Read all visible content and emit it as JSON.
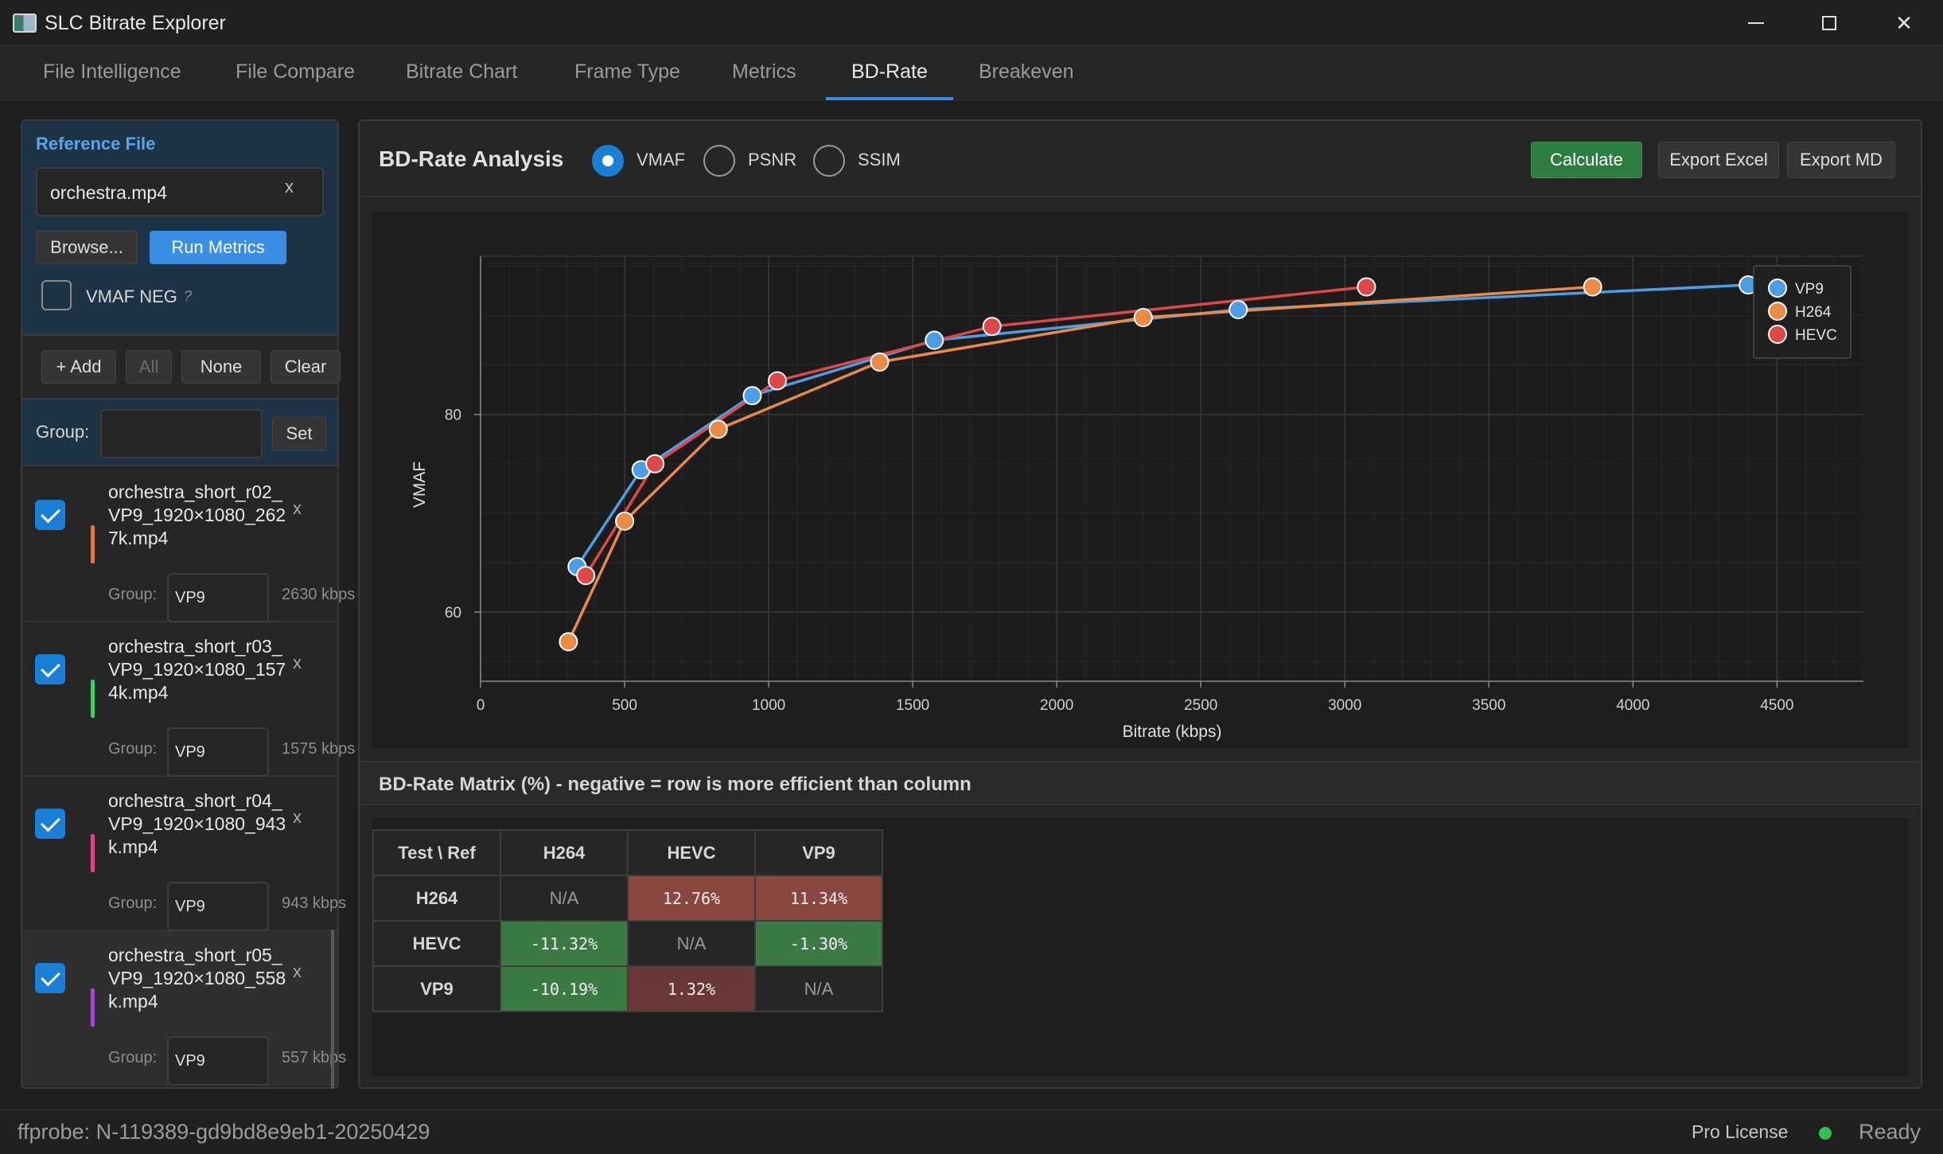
{
  "window": {
    "title": "SLC Bitrate Explorer"
  },
  "tabs": [
    {
      "label": "File Intelligence"
    },
    {
      "label": "File Compare"
    },
    {
      "label": "Bitrate Chart"
    },
    {
      "label": "Frame Type"
    },
    {
      "label": "Metrics"
    },
    {
      "label": "BD-Rate",
      "active": true
    },
    {
      "label": "Breakeven"
    }
  ],
  "reference": {
    "title": "Reference File",
    "file": "orchestra.mp4",
    "clear_glyph": "x",
    "browse_label": "Browse...",
    "run_label": "Run Metrics",
    "vmaf_neg_label": "VMAF NEG",
    "vmaf_neg_hint": "?",
    "vmaf_neg_checked": false
  },
  "list_toolbar": {
    "add_label": "+ Add",
    "all_label": "All",
    "none_label": "None",
    "clear_label": "Clear",
    "group_label": "Group:",
    "group_value": "",
    "set_label": "Set"
  },
  "files": [
    {
      "name": "orchestra_short_r02_VP9_1920×1080_2627k.mp4",
      "checked": true,
      "color": "#e07a40",
      "group_label": "Group:",
      "group": "VP9",
      "bitrate": "2630 kbps",
      "remove": "x"
    },
    {
      "name": "orchestra_short_r03_VP9_1920×1080_1574k.mp4",
      "checked": true,
      "color": "#3ecf6b",
      "group_label": "Group:",
      "group": "VP9",
      "bitrate": "1575 kbps",
      "remove": "x"
    },
    {
      "name": "orchestra_short_r04_VP9_1920×1080_943k.mp4",
      "checked": true,
      "color": "#e0408a",
      "group_label": "Group:",
      "group": "VP9",
      "bitrate": "943 kbps",
      "remove": "x"
    },
    {
      "name": "orchestra_short_r05_VP9_1920×1080_558k.mp4",
      "checked": true,
      "color": "#a64ad6",
      "group_label": "Group:",
      "group": "VP9",
      "bitrate": "557 kbps",
      "remove": "x"
    }
  ],
  "analysis": {
    "title": "BD-Rate Analysis",
    "metrics": [
      {
        "label": "VMAF",
        "selected": true
      },
      {
        "label": "PSNR",
        "selected": false
      },
      {
        "label": "SSIM",
        "selected": false
      }
    ],
    "calculate_label": "Calculate",
    "export_excel_label": "Export Excel",
    "export_md_label": "Export MD"
  },
  "chart_data": {
    "type": "line",
    "title": "",
    "xlabel": "Bitrate (kbps)",
    "ylabel": "VMAF",
    "xlim": [
      0,
      4800
    ],
    "ylim": [
      53,
      96
    ],
    "xticks": [
      0,
      500,
      1000,
      1500,
      2000,
      2500,
      3000,
      3500,
      4000,
      4500
    ],
    "yticks": [
      60,
      80
    ],
    "grid": true,
    "legend_position": "top-right",
    "series": [
      {
        "name": "VP9",
        "color": "#4a9ee6",
        "x": [
          335,
          557,
          943,
          1575,
          2630,
          4400
        ],
        "y": [
          64.6,
          74.4,
          81.9,
          87.5,
          90.6,
          93.1
        ]
      },
      {
        "name": "H264",
        "color": "#ea8a45",
        "x": [
          305,
          500,
          825,
          1385,
          2300,
          3860
        ],
        "y": [
          57.0,
          69.2,
          78.5,
          85.3,
          89.8,
          92.9
        ]
      },
      {
        "name": "HEVC",
        "color": "#e04848",
        "x": [
          365,
          605,
          1030,
          1775,
          3075
        ],
        "y": [
          63.7,
          75.0,
          83.4,
          88.9,
          92.9
        ]
      }
    ]
  },
  "matrix": {
    "title": "BD-Rate Matrix (%) - negative = row is more efficient than column",
    "corner": "Test \\ Ref",
    "columns": [
      "H264",
      "HEVC",
      "VP9"
    ],
    "rows": [
      {
        "label": "H264",
        "cells": [
          {
            "text": "N/A",
            "tone": "na"
          },
          {
            "text": "12.76%",
            "tone": "bad"
          },
          {
            "text": "11.34%",
            "tone": "bad"
          }
        ]
      },
      {
        "label": "HEVC",
        "cells": [
          {
            "text": "-11.32%",
            "tone": "good"
          },
          {
            "text": "N/A",
            "tone": "na"
          },
          {
            "text": "-1.30%",
            "tone": "good"
          }
        ]
      },
      {
        "label": "VP9",
        "cells": [
          {
            "text": "-10.19%",
            "tone": "good"
          },
          {
            "text": "1.32%",
            "tone": "bad2"
          },
          {
            "text": "N/A",
            "tone": "na"
          }
        ]
      }
    ]
  },
  "status": {
    "left": "ffprobe: N-119389-gd9bd8e9eb1-20250429",
    "license": "Pro License",
    "ready": "Ready",
    "ready_color": "#33c24d"
  },
  "colors": {
    "accent": "#3a8ee6",
    "good_cell": "#3b7a45",
    "bad_cell": "#8a4641",
    "bad_cell_light": "#6b3838"
  }
}
